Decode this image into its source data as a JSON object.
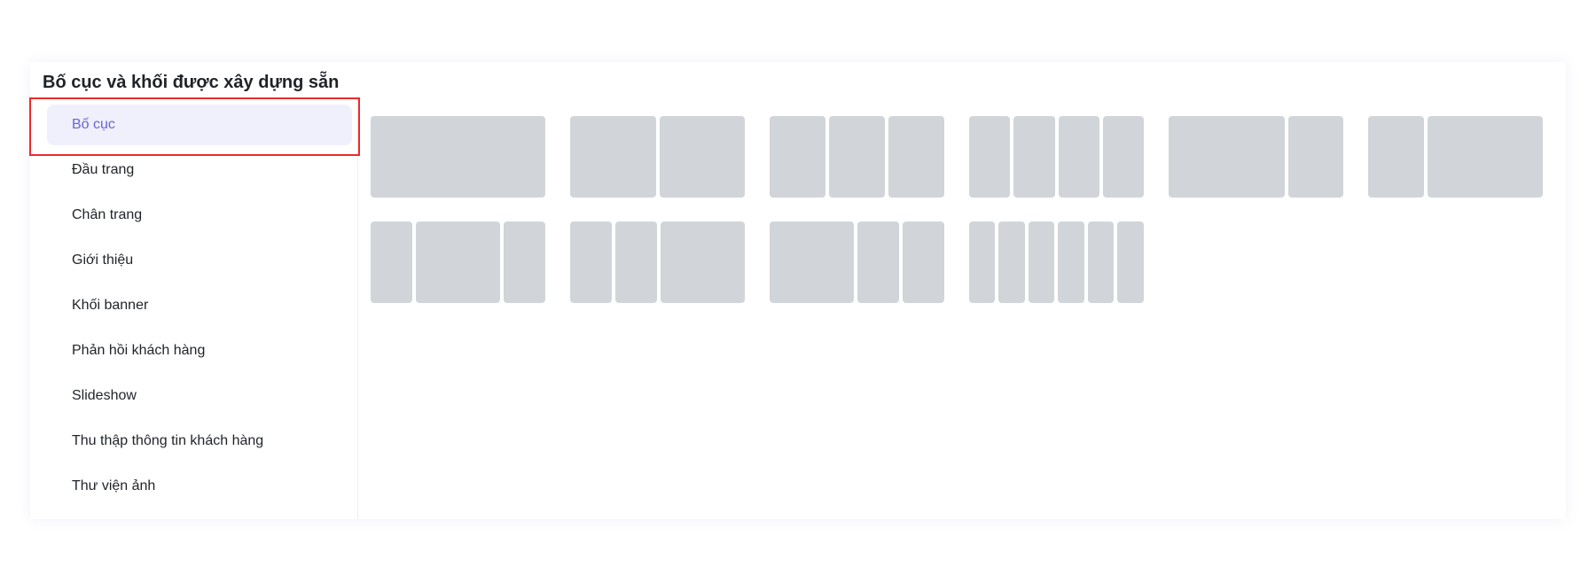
{
  "panel": {
    "title": "Bố cục và khối được xây dựng sẵn"
  },
  "sidebar": {
    "items": [
      {
        "label": "Bố cục",
        "active": true
      },
      {
        "label": "Đầu trang",
        "active": false
      },
      {
        "label": "Chân trang",
        "active": false
      },
      {
        "label": "Giới thiệu",
        "active": false
      },
      {
        "label": "Khối banner",
        "active": false
      },
      {
        "label": "Phản hồi khách hàng",
        "active": false
      },
      {
        "label": "Slideshow",
        "active": false
      },
      {
        "label": "Thu thập thông tin khách hàng",
        "active": false
      },
      {
        "label": "Thư viện ảnh",
        "active": false
      }
    ]
  },
  "layouts": [
    {
      "columns": [
        1
      ]
    },
    {
      "columns": [
        1,
        1
      ]
    },
    {
      "columns": [
        1,
        1,
        1
      ]
    },
    {
      "columns": [
        1,
        1,
        1,
        1
      ]
    },
    {
      "columns": [
        2,
        1
      ]
    },
    {
      "columns": [
        1,
        2
      ]
    },
    {
      "columns": [
        1,
        2,
        1
      ]
    },
    {
      "columns": [
        1,
        1,
        2
      ]
    },
    {
      "columns": [
        2,
        1,
        1
      ]
    },
    {
      "columns": [
        1,
        1,
        1,
        1,
        1,
        1
      ]
    }
  ],
  "colors": {
    "accent": "#6b63d6",
    "active_bg": "#f0f0fd",
    "tile": "#d1d5d9",
    "highlight": "#ee2a2a"
  }
}
